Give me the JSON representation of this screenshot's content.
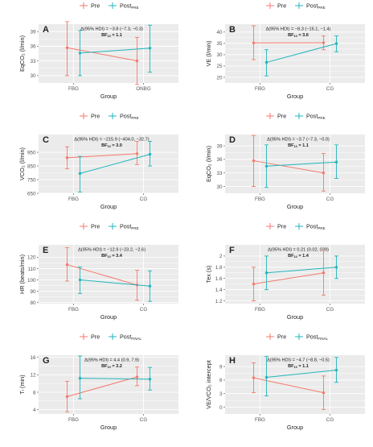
{
  "figure": {
    "colors": {
      "pre": "#f47a6c",
      "post": "#21b5bd",
      "panel_bg": "#ebebeb",
      "grid": "#ffffff",
      "text": "#222222"
    },
    "legend": {
      "pre_label": "Pre"
    }
  },
  "chart_data": [
    {
      "panel": "A",
      "type": "line",
      "legend_post": {
        "base": "Post",
        "sub": "PRE"
      },
      "stat_line1": "Δ(95% HDI) = −3.8 (−7.3, −0.3)",
      "stat_line2_prefix": "BF",
      "stat_line2_sub": "10",
      "stat_line2_value": "= 1.1",
      "ylabel": "EqCO₂ (l/min)",
      "xlabel": "Group",
      "categories": [
        "FBG",
        "ONBG"
      ],
      "ylim": [
        28.5,
        40.5
      ],
      "yticks": [
        30,
        33,
        36,
        39
      ],
      "series": [
        {
          "name": "Pre",
          "key": "pre",
          "values": [
            35.7,
            33.0
          ],
          "ci": [
            [
              30.0,
              41.0
            ],
            [
              28.2,
              37.8
            ]
          ]
        },
        {
          "name": "Post",
          "key": "post",
          "values": [
            34.6,
            35.6
          ],
          "ci": [
            [
              30.0,
              39.2
            ],
            [
              30.7,
              40.3
            ]
          ]
        }
      ]
    },
    {
      "panel": "B",
      "type": "line",
      "legend_post": {
        "base": "Post",
        "sub": "PRE"
      },
      "stat_line1": "Δ(95% HDI) = −8.3 (−15.1, −1.4)",
      "stat_line2_prefix": "BF",
      "stat_line2_sub": "10",
      "stat_line2_value": "= 3.6",
      "ylabel": "VE (l/min)",
      "xlabel": "Group",
      "categories": [
        "FBG",
        "CG"
      ],
      "ylim": [
        17.5,
        43.5
      ],
      "yticks": [
        20,
        25,
        30,
        35,
        40
      ],
      "series": [
        {
          "name": "Pre",
          "key": "pre",
          "values": [
            35.2,
            35.3
          ],
          "ci": [
            [
              27.8,
              42.8
            ],
            [
              32.2,
              38.3
            ]
          ]
        },
        {
          "name": "Post",
          "key": "post",
          "values": [
            26.6,
            34.9
          ],
          "ci": [
            [
              20.6,
              32.2
            ],
            [
              31.3,
              38.3
            ]
          ]
        }
      ]
    },
    {
      "panel": "C",
      "type": "line",
      "legend_post": {
        "base": "Post",
        "sub": "PRE"
      },
      "stat_line1": "Δ(95% HDI) = −215.9 (−404.0, −32.7)",
      "stat_line2_prefix": "BF",
      "stat_line2_sub": "10",
      "stat_line2_value": "= 3.0",
      "ylabel": "VCO₂ (l/min)",
      "xlabel": "Group",
      "categories": [
        "FBG",
        "CG"
      ],
      "ylim": [
        650,
        1080
      ],
      "yticks": [
        650,
        750,
        850,
        950
      ],
      "series": [
        {
          "name": "Pre",
          "key": "pre",
          "values": [
            910,
            940
          ],
          "ci": [
            [
              830,
              990
            ],
            [
              860,
              1030
            ]
          ]
        },
        {
          "name": "Post",
          "key": "post",
          "values": [
            795,
            935
          ],
          "ci": [
            [
              660,
              920
            ],
            [
              850,
              1030
            ]
          ]
        }
      ]
    },
    {
      "panel": "D",
      "type": "line",
      "legend_post": {
        "base": "Post",
        "sub": "PRE"
      },
      "stat_line1": "Δ(95% HDI) = −3.7 (−7.3, −0.0)",
      "stat_line2_prefix": "BF",
      "stat_line2_sub": "10",
      "stat_line2_value": "= 1.1",
      "ylabel": "EqCO₂ (l/min)",
      "xlabel": "Group",
      "categories": [
        "FBG",
        "CG"
      ],
      "ylim": [
        28.5,
        41.5
      ],
      "yticks": [
        30,
        33,
        36,
        39
      ],
      "series": [
        {
          "name": "Pre",
          "key": "pre",
          "values": [
            35.7,
            33.0
          ],
          "ci": [
            [
              30.0,
              41.3
            ],
            [
              29.0,
              37.3
            ]
          ]
        },
        {
          "name": "Post",
          "key": "post",
          "values": [
            34.5,
            35.4
          ],
          "ci": [
            [
              29.8,
              39.2
            ],
            [
              31.8,
              39.2
            ]
          ]
        }
      ]
    },
    {
      "panel": "E",
      "type": "line",
      "legend_post": {
        "base": "Post",
        "sub": "PRE"
      },
      "stat_line1": "Δ(95% HDI) = −12.9 (−23.2, −2.6)",
      "stat_line2_prefix": "BF",
      "stat_line2_sub": "10",
      "stat_line2_value": "= 3.4",
      "ylabel": "HR (beats/min)",
      "xlabel": "Group",
      "categories": [
        "FBG",
        "CG"
      ],
      "ylim": [
        79,
        131
      ],
      "yticks": [
        80,
        90,
        100,
        110,
        120
      ],
      "series": [
        {
          "name": "Pre",
          "key": "pre",
          "values": [
            113.5,
            95.5
          ],
          "ci": [
            [
              99.0,
              128.5
            ],
            [
              82.0,
              108.5
            ]
          ]
        },
        {
          "name": "Post",
          "key": "post",
          "values": [
            100.0,
            94.5
          ],
          "ci": [
            [
              88.0,
              111.5
            ],
            [
              81.0,
              108.0
            ]
          ]
        }
      ]
    },
    {
      "panel": "F",
      "type": "line",
      "legend_post": {
        "base": "Post",
        "sub": "PRE"
      },
      "stat_line1": "Δ(95% HDI) = 0.21 (0.02, 039)",
      "stat_line2_prefix": "BF",
      "stat_line2_sub": "10",
      "stat_line2_value": "= 1.4",
      "ylabel": "Tex (s)",
      "xlabel": "Group",
      "categories": [
        "FBG",
        "CG"
      ],
      "ylim": [
        1.15,
        2.2
      ],
      "yticks": [
        1.2,
        1.4,
        1.6,
        1.8,
        2.0
      ],
      "series": [
        {
          "name": "Pre",
          "key": "pre",
          "values": [
            1.5,
            1.7
          ],
          "ci": [
            [
              1.2,
              1.8
            ],
            [
              1.3,
              2.1
            ]
          ]
        },
        {
          "name": "Post",
          "key": "post",
          "values": [
            1.7,
            1.8
          ],
          "ci": [
            [
              1.4,
              2.0
            ],
            [
              1.6,
              2.0
            ]
          ]
        }
      ]
    },
    {
      "panel": "G",
      "type": "line",
      "legend_post": {
        "base": "Post",
        "sub": "FINAL"
      },
      "stat_line1": "Δ(95% HDI) = 4.4 (0.9, 7.9)",
      "stat_line2_prefix": "BF",
      "stat_line2_sub": "10",
      "stat_line2_value": "= 3.2",
      "ylabel": "Tₗ (min)",
      "xlabel": "Group",
      "categories": [
        "FBG",
        "CG"
      ],
      "ylim": [
        3,
        16.5
      ],
      "yticks": [
        4,
        8,
        12,
        16
      ],
      "series": [
        {
          "name": "Pre",
          "key": "pre",
          "values": [
            7.0,
            11.5
          ],
          "ci": [
            [
              3.5,
              10.5
            ],
            [
              9.5,
              13.8
            ]
          ]
        },
        {
          "name": "Post",
          "key": "post",
          "values": [
            11.2,
            11.0
          ],
          "ci": [
            [
              6.5,
              16.3
            ],
            [
              8.5,
              13.7
            ]
          ]
        }
      ]
    },
    {
      "panel": "H",
      "type": "line",
      "legend_post": {
        "base": "Post",
        "sub": "FINAL"
      },
      "stat_line1": "Δ(95% HDI) = −4.7 (−8.8, −0.5)",
      "stat_line2_prefix": "BF",
      "stat_line2_sub": "10",
      "stat_line2_value": "= 1.1",
      "ylabel": "VE/VCO₂ intercept",
      "xlabel": "Group",
      "categories": [
        "FBG",
        "CG"
      ],
      "ylim": [
        -1.5,
        11.5
      ],
      "yticks": [
        0,
        3,
        6,
        9
      ],
      "series": [
        {
          "name": "Pre",
          "key": "pre",
          "values": [
            6.5,
            3.2
          ],
          "ci": [
            [
              3.2,
              9.8
            ],
            [
              -0.5,
              6.9
            ]
          ]
        },
        {
          "name": "Post",
          "key": "post",
          "values": [
            6.6,
            8.2
          ],
          "ci": [
            [
              2.5,
              11.2
            ],
            [
              5.5,
              11.0
            ]
          ]
        }
      ]
    }
  ]
}
